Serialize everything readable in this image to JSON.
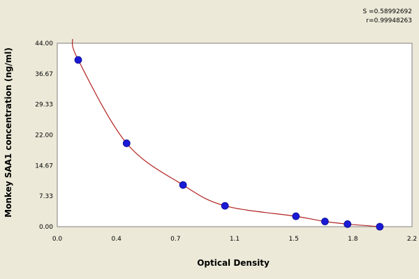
{
  "chart_data": {
    "type": "scatter",
    "xlabel": "Optical Density",
    "ylabel": "Monkey SAA1 concentration (ng/ml)",
    "stats": [
      "S =0.58992692",
      "r=0.99948263"
    ],
    "x_ticks": [
      "0.0",
      "0.4",
      "0.7",
      "1.1",
      "1.5",
      "1.8",
      "2.2"
    ],
    "y_ticks": [
      "0.00",
      "7.33",
      "14.67",
      "22.00",
      "29.33",
      "36.67",
      "44.00"
    ],
    "xlim": [
      0.0,
      2.2
    ],
    "ylim": [
      0.0,
      44.0
    ],
    "grid": "dashed",
    "points": [
      {
        "x": 0.13,
        "y": 40.0
      },
      {
        "x": 0.43,
        "y": 20.0
      },
      {
        "x": 0.78,
        "y": 10.0
      },
      {
        "x": 1.04,
        "y": 5.0
      },
      {
        "x": 1.48,
        "y": 2.5
      },
      {
        "x": 1.66,
        "y": 1.25
      },
      {
        "x": 1.8,
        "y": 0.625
      },
      {
        "x": 2.0,
        "y": 0.0
      }
    ],
    "colors": {
      "background": "#ece9d8",
      "plot_background": "#ffffff",
      "curve": "#b22222",
      "marker": "#1a1ad6",
      "grid": "#b0b0b0"
    }
  }
}
